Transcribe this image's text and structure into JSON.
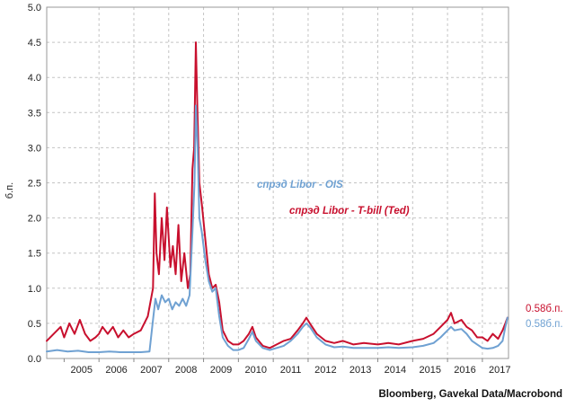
{
  "chart_data": {
    "type": "line",
    "ylabel": "б.п.",
    "ylim": [
      0,
      5
    ],
    "yticks": [
      "0.0",
      "0.5",
      "1.0",
      "1.5",
      "2.0",
      "2.5",
      "3.0",
      "3.5",
      "4.0",
      "4.5",
      "5.0"
    ],
    "xlim": [
      2004.5,
      2017.75
    ],
    "xticks": [
      "2005",
      "2006",
      "2007",
      "2008",
      "2009",
      "2010",
      "2011",
      "2012",
      "2013",
      "2014",
      "2015",
      "2016",
      "2017"
    ],
    "grid": true,
    "series": [
      {
        "name": "спрэд Libor - T-bill (Ted)",
        "color": "#c8102e",
        "end_label": "0.58б.п.",
        "points": [
          [
            2004.5,
            0.25
          ],
          [
            2004.7,
            0.35
          ],
          [
            2004.9,
            0.45
          ],
          [
            2005.0,
            0.3
          ],
          [
            2005.15,
            0.5
          ],
          [
            2005.3,
            0.35
          ],
          [
            2005.45,
            0.55
          ],
          [
            2005.6,
            0.35
          ],
          [
            2005.75,
            0.25
          ],
          [
            2005.9,
            0.3
          ],
          [
            2006.0,
            0.35
          ],
          [
            2006.1,
            0.45
          ],
          [
            2006.25,
            0.35
          ],
          [
            2006.4,
            0.45
          ],
          [
            2006.55,
            0.3
          ],
          [
            2006.7,
            0.4
          ],
          [
            2006.85,
            0.3
          ],
          [
            2007.0,
            0.35
          ],
          [
            2007.2,
            0.4
          ],
          [
            2007.4,
            0.6
          ],
          [
            2007.55,
            1.0
          ],
          [
            2007.6,
            2.35
          ],
          [
            2007.65,
            1.5
          ],
          [
            2007.72,
            1.2
          ],
          [
            2007.8,
            2.0
          ],
          [
            2007.88,
            1.4
          ],
          [
            2007.95,
            2.15
          ],
          [
            2008.05,
            1.3
          ],
          [
            2008.12,
            1.6
          ],
          [
            2008.2,
            1.2
          ],
          [
            2008.28,
            1.9
          ],
          [
            2008.36,
            1.1
          ],
          [
            2008.45,
            1.5
          ],
          [
            2008.55,
            1.0
          ],
          [
            2008.62,
            1.2
          ],
          [
            2008.68,
            2.7
          ],
          [
            2008.73,
            3.0
          ],
          [
            2008.78,
            4.5
          ],
          [
            2008.82,
            3.6
          ],
          [
            2008.88,
            2.5
          ],
          [
            2008.95,
            2.2
          ],
          [
            2009.05,
            1.7
          ],
          [
            2009.15,
            1.2
          ],
          [
            2009.25,
            1.0
          ],
          [
            2009.35,
            1.05
          ],
          [
            2009.45,
            0.8
          ],
          [
            2009.55,
            0.4
          ],
          [
            2009.7,
            0.25
          ],
          [
            2009.85,
            0.2
          ],
          [
            2010.0,
            0.2
          ],
          [
            2010.15,
            0.25
          ],
          [
            2010.3,
            0.35
          ],
          [
            2010.4,
            0.45
          ],
          [
            2010.5,
            0.3
          ],
          [
            2010.7,
            0.18
          ],
          [
            2010.9,
            0.15
          ],
          [
            2011.1,
            0.2
          ],
          [
            2011.3,
            0.25
          ],
          [
            2011.5,
            0.28
          ],
          [
            2011.7,
            0.4
          ],
          [
            2011.85,
            0.5
          ],
          [
            2011.95,
            0.58
          ],
          [
            2012.05,
            0.5
          ],
          [
            2012.25,
            0.35
          ],
          [
            2012.5,
            0.25
          ],
          [
            2012.75,
            0.22
          ],
          [
            2013.0,
            0.25
          ],
          [
            2013.3,
            0.2
          ],
          [
            2013.6,
            0.22
          ],
          [
            2014.0,
            0.2
          ],
          [
            2014.3,
            0.22
          ],
          [
            2014.6,
            0.2
          ],
          [
            2015.0,
            0.25
          ],
          [
            2015.3,
            0.28
          ],
          [
            2015.6,
            0.35
          ],
          [
            2015.8,
            0.45
          ],
          [
            2016.0,
            0.55
          ],
          [
            2016.1,
            0.65
          ],
          [
            2016.2,
            0.5
          ],
          [
            2016.4,
            0.55
          ],
          [
            2016.55,
            0.45
          ],
          [
            2016.7,
            0.4
          ],
          [
            2016.85,
            0.3
          ],
          [
            2017.0,
            0.3
          ],
          [
            2017.15,
            0.25
          ],
          [
            2017.3,
            0.35
          ],
          [
            2017.45,
            0.28
          ],
          [
            2017.58,
            0.4
          ],
          [
            2017.66,
            0.5
          ],
          [
            2017.72,
            0.58
          ]
        ]
      },
      {
        "name": "спрэд Libor - OIS",
        "color": "#6fa1d2",
        "end_label": "0.58б.п.",
        "points": [
          [
            2004.5,
            0.1
          ],
          [
            2004.8,
            0.12
          ],
          [
            2005.1,
            0.1
          ],
          [
            2005.4,
            0.11
          ],
          [
            2005.7,
            0.09
          ],
          [
            2006.0,
            0.09
          ],
          [
            2006.3,
            0.1
          ],
          [
            2006.6,
            0.09
          ],
          [
            2006.9,
            0.09
          ],
          [
            2007.2,
            0.09
          ],
          [
            2007.45,
            0.1
          ],
          [
            2007.55,
            0.55
          ],
          [
            2007.62,
            0.85
          ],
          [
            2007.7,
            0.7
          ],
          [
            2007.8,
            0.9
          ],
          [
            2007.9,
            0.8
          ],
          [
            2008.0,
            0.85
          ],
          [
            2008.1,
            0.7
          ],
          [
            2008.2,
            0.8
          ],
          [
            2008.3,
            0.75
          ],
          [
            2008.4,
            0.85
          ],
          [
            2008.5,
            0.75
          ],
          [
            2008.6,
            0.9
          ],
          [
            2008.68,
            1.8
          ],
          [
            2008.74,
            2.5
          ],
          [
            2008.78,
            3.6
          ],
          [
            2008.83,
            3.0
          ],
          [
            2008.88,
            2.0
          ],
          [
            2008.95,
            1.8
          ],
          [
            2009.05,
            1.4
          ],
          [
            2009.15,
            1.1
          ],
          [
            2009.25,
            0.95
          ],
          [
            2009.35,
            1.0
          ],
          [
            2009.45,
            0.6
          ],
          [
            2009.55,
            0.3
          ],
          [
            2009.7,
            0.18
          ],
          [
            2009.85,
            0.12
          ],
          [
            2010.0,
            0.12
          ],
          [
            2010.15,
            0.15
          ],
          [
            2010.3,
            0.28
          ],
          [
            2010.4,
            0.38
          ],
          [
            2010.5,
            0.25
          ],
          [
            2010.7,
            0.15
          ],
          [
            2010.9,
            0.12
          ],
          [
            2011.1,
            0.15
          ],
          [
            2011.3,
            0.18
          ],
          [
            2011.5,
            0.25
          ],
          [
            2011.7,
            0.35
          ],
          [
            2011.85,
            0.45
          ],
          [
            2011.95,
            0.5
          ],
          [
            2012.05,
            0.45
          ],
          [
            2012.25,
            0.3
          ],
          [
            2012.5,
            0.2
          ],
          [
            2012.75,
            0.16
          ],
          [
            2013.0,
            0.17
          ],
          [
            2013.3,
            0.15
          ],
          [
            2013.6,
            0.15
          ],
          [
            2014.0,
            0.15
          ],
          [
            2014.3,
            0.16
          ],
          [
            2014.6,
            0.15
          ],
          [
            2015.0,
            0.16
          ],
          [
            2015.3,
            0.18
          ],
          [
            2015.6,
            0.22
          ],
          [
            2015.8,
            0.3
          ],
          [
            2016.0,
            0.4
          ],
          [
            2016.1,
            0.45
          ],
          [
            2016.2,
            0.4
          ],
          [
            2016.4,
            0.42
          ],
          [
            2016.55,
            0.35
          ],
          [
            2016.7,
            0.25
          ],
          [
            2016.85,
            0.2
          ],
          [
            2017.0,
            0.15
          ],
          [
            2017.15,
            0.14
          ],
          [
            2017.3,
            0.15
          ],
          [
            2017.45,
            0.18
          ],
          [
            2017.58,
            0.25
          ],
          [
            2017.66,
            0.45
          ],
          [
            2017.72,
            0.58
          ]
        ]
      }
    ],
    "annotations": [
      {
        "text": "спрэд Libor - OIS",
        "color": "#6fa1d2"
      },
      {
        "text": "спрэд Libor - T-bill (Ted)",
        "color": "#c8102e"
      }
    ],
    "source": "Bloomberg, Gavekal Data/Macrobond"
  }
}
